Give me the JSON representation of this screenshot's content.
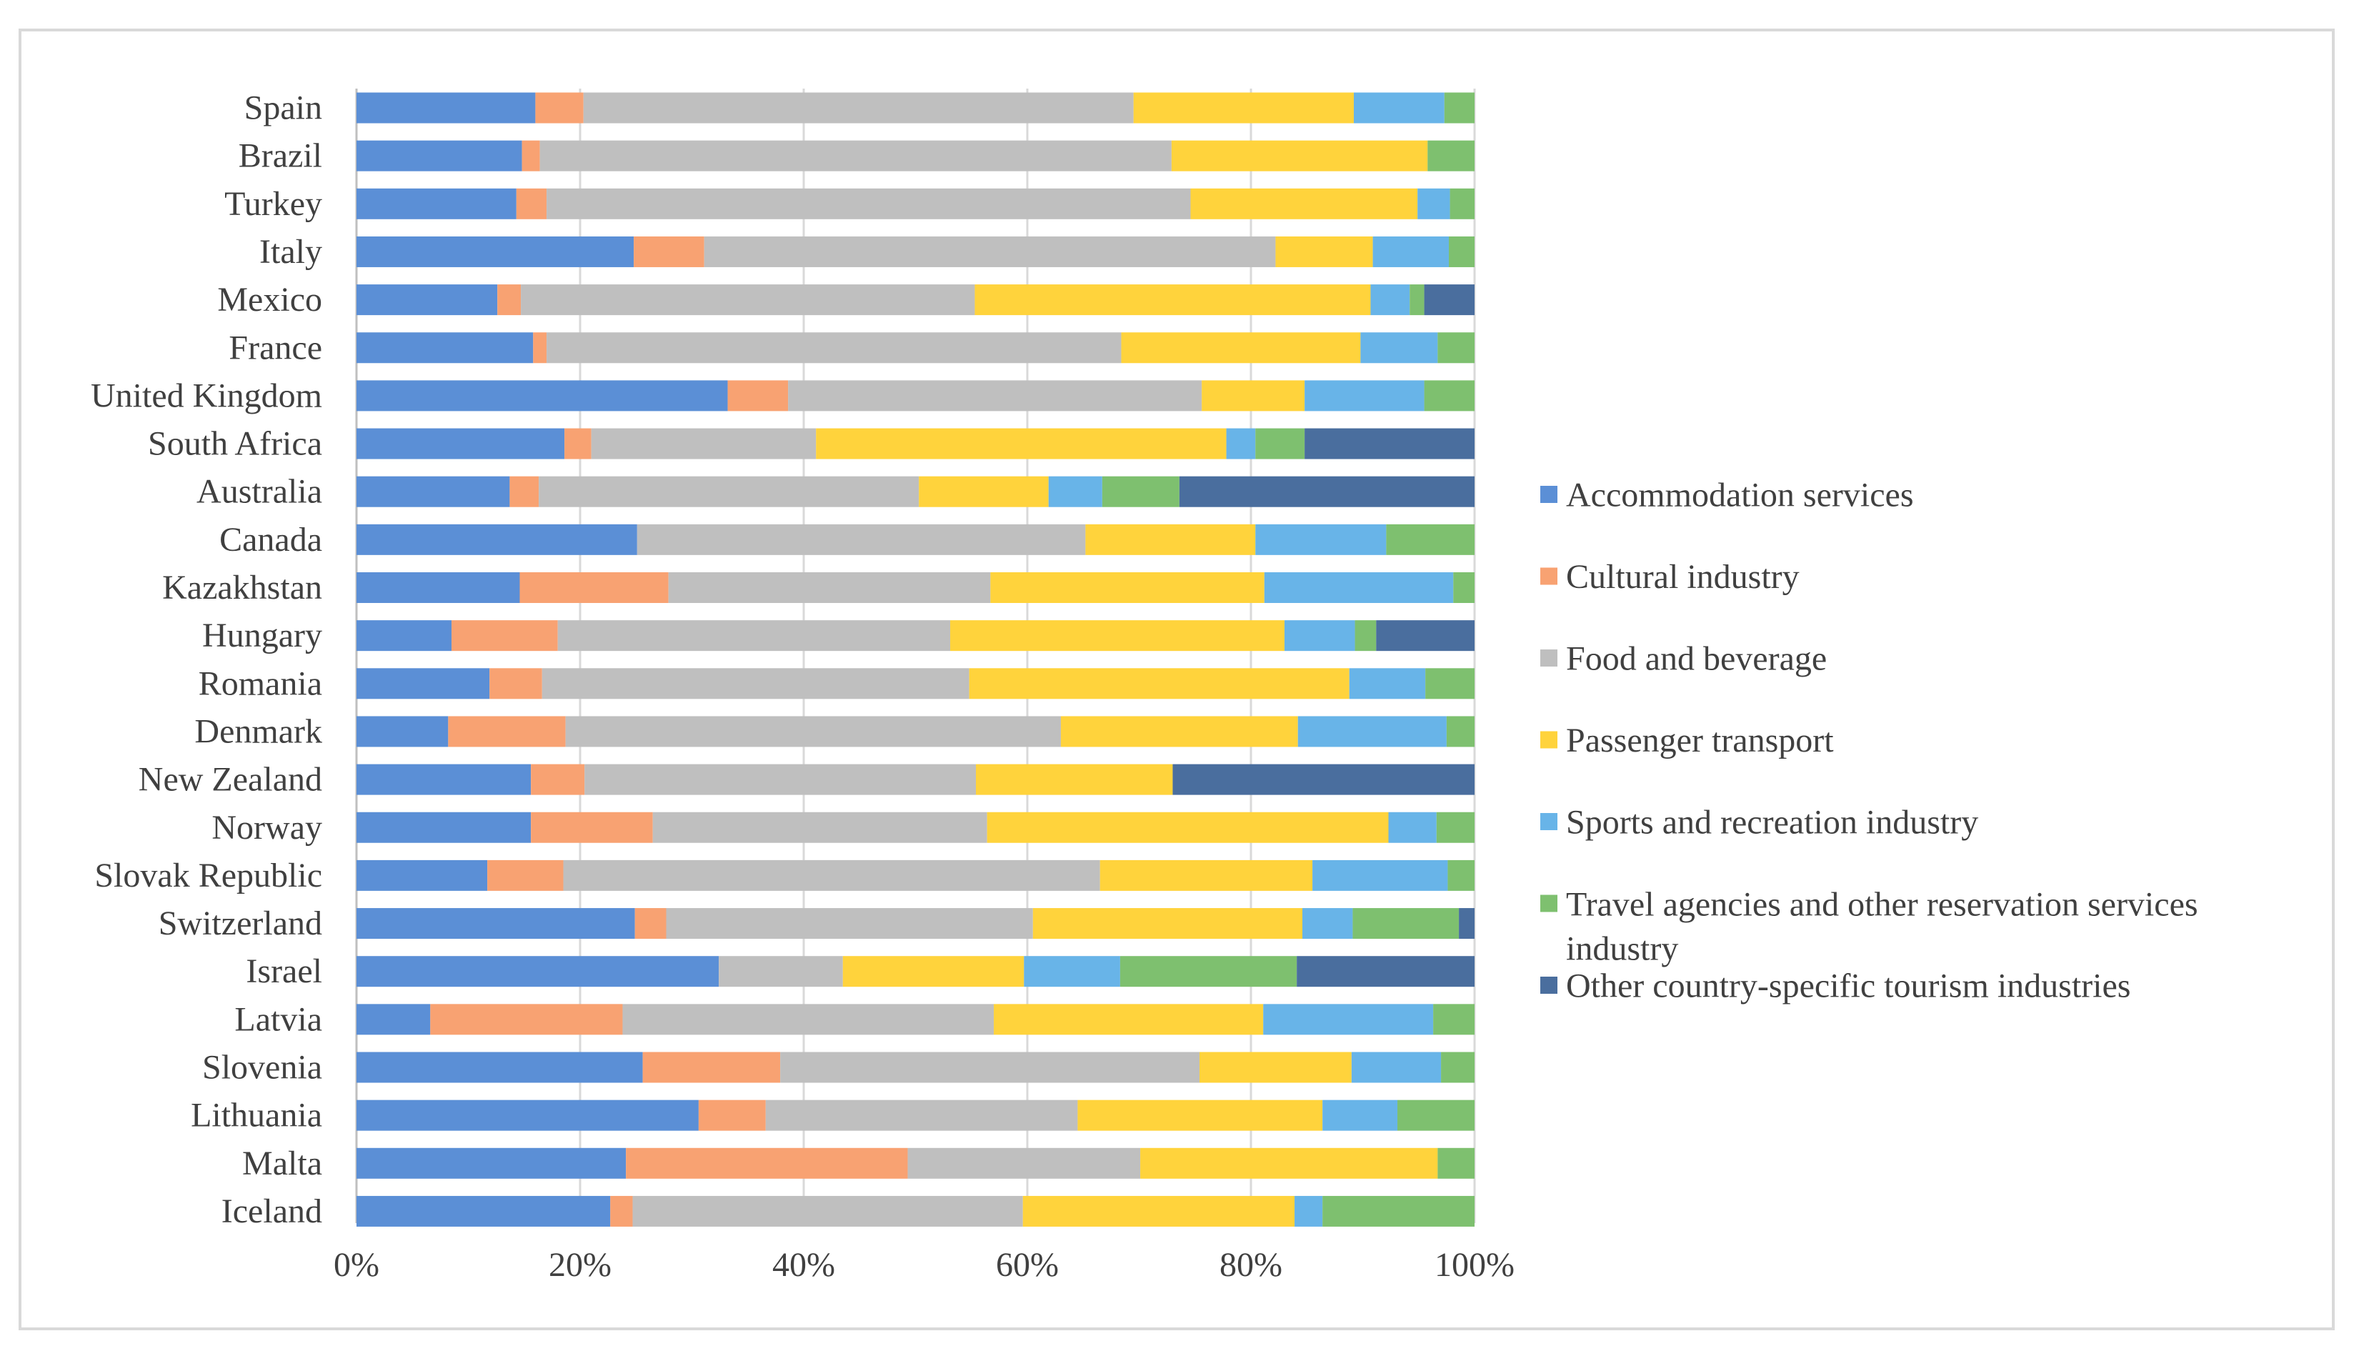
{
  "chart_data": {
    "type": "bar",
    "orientation": "horizontal",
    "stacked": "percent",
    "title": "",
    "xlabel": "",
    "ylabel": "",
    "xlim": [
      0,
      100
    ],
    "x_ticks": [
      "0%",
      "20%",
      "40%",
      "60%",
      "80%",
      "100%"
    ],
    "grid": true,
    "legend_position": "right",
    "categories": [
      "Spain",
      "Brazil",
      "Turkey",
      "Italy",
      "Mexico",
      "France",
      "United Kingdom",
      "South Africa",
      "Australia",
      "Canada",
      "Kazakhstan",
      "Hungary",
      "Romania",
      "Denmark",
      "New Zealand",
      "Norway",
      "Slovak Republic",
      "Switzerland",
      "Israel",
      "Latvia",
      "Slovenia",
      "Lithuania",
      "Malta",
      "Iceland"
    ],
    "series": [
      {
        "name": "Accommodation services",
        "color": "#5b8fd6",
        "values": [
          16,
          14.8,
          14.3,
          24.8,
          12.6,
          15.8,
          33.2,
          18.6,
          13.7,
          25.1,
          14.6,
          8.5,
          11.9,
          8.2,
          15.6,
          15.6,
          11.7,
          24.9,
          32.4,
          6.6,
          25.6,
          30.6,
          24.1,
          22.7
        ]
      },
      {
        "name": "Cultural industry",
        "color": "#f8a272",
        "values": [
          4.3,
          1.6,
          2.7,
          6.3,
          2.1,
          1.2,
          5.4,
          2.4,
          2.6,
          0,
          13.3,
          9.5,
          4.7,
          10.5,
          4.8,
          10.9,
          6.8,
          2.8,
          0,
          17.2,
          12.3,
          6,
          25.2,
          2
        ]
      },
      {
        "name": "Food and beverage",
        "color": "#bfbfbf",
        "values": [
          49.2,
          56.5,
          57.6,
          51.1,
          40.6,
          51.4,
          37,
          20.1,
          34,
          40.1,
          28.8,
          35.1,
          38.2,
          44.3,
          35,
          29.9,
          48,
          32.8,
          11.1,
          33.2,
          37.5,
          27.9,
          20.8,
          34.9
        ]
      },
      {
        "name": "Passenger transport",
        "color": "#ffd33c",
        "values": [
          19.7,
          22.9,
          20.3,
          8.7,
          35.4,
          21.4,
          9.2,
          36.7,
          11.6,
          15.2,
          24.5,
          29.9,
          34,
          21.2,
          17.6,
          35.9,
          19,
          24.1,
          16.2,
          24.1,
          13.6,
          21.9,
          26.6,
          24.3
        ]
      },
      {
        "name": "Sports and recreation industry",
        "color": "#68b4e8",
        "values": [
          8.1,
          0,
          2.9,
          6.8,
          3.5,
          6.9,
          10.7,
          2.6,
          4.8,
          11.7,
          16.9,
          6.3,
          6.8,
          13.3,
          0,
          4.3,
          12.1,
          4.5,
          8.6,
          15.2,
          8,
          6.7,
          0,
          2.5
        ]
      },
      {
        "name": "Travel agencies and other reservation services industry",
        "color": "#7ec06f",
        "values": [
          2.7,
          4.2,
          2.2,
          2.3,
          1.3,
          3.3,
          4.5,
          4.4,
          6.9,
          7.9,
          1.9,
          1.9,
          4.4,
          2.5,
          0,
          3.4,
          2.4,
          9.5,
          15.8,
          3.7,
          3,
          6.9,
          3.3,
          13.6
        ]
      },
      {
        "name": "Other country-specific tourism industries",
        "color": "#4a6e9e",
        "values": [
          0,
          0,
          0,
          0,
          4.5,
          0,
          0,
          15.2,
          26.4,
          0,
          0,
          8.8,
          0,
          0,
          27,
          0,
          0,
          1.4,
          15.9,
          0,
          0,
          0,
          0,
          0
        ]
      }
    ]
  }
}
